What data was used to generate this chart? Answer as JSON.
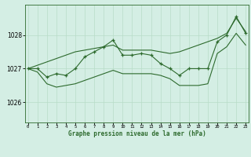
{
  "bg_color": "#d4eee4",
  "line_color": "#2d6a2d",
  "grid_color": "#b8dcc8",
  "xlabel": "Graphe pression niveau de la mer (hPa)",
  "x_ticks": [
    0,
    1,
    2,
    3,
    4,
    5,
    6,
    7,
    8,
    9,
    10,
    11,
    12,
    13,
    14,
    15,
    16,
    17,
    18,
    19,
    20,
    21,
    22,
    23
  ],
  "y_ticks": [
    1026,
    1027,
    1028
  ],
  "ylim": [
    1025.4,
    1028.9
  ],
  "xlim": [
    -0.3,
    23.3
  ],
  "main": [
    1027.0,
    1027.0,
    1026.75,
    1026.85,
    1026.8,
    1027.0,
    1027.35,
    1027.5,
    1027.65,
    1027.85,
    1027.4,
    1027.4,
    1027.45,
    1027.4,
    1027.15,
    1027.0,
    1026.8,
    1027.0,
    1027.0,
    1027.0,
    1027.8,
    1028.0,
    1028.55,
    1028.05
  ],
  "upper": [
    1027.0,
    1027.1,
    1027.2,
    1027.3,
    1027.4,
    1027.5,
    1027.55,
    1027.6,
    1027.65,
    1027.7,
    1027.55,
    1027.55,
    1027.55,
    1027.55,
    1027.5,
    1027.45,
    1027.5,
    1027.6,
    1027.7,
    1027.8,
    1027.9,
    1028.05,
    1028.5,
    1028.1
  ],
  "lower": [
    1027.0,
    1026.9,
    1026.55,
    1026.45,
    1026.5,
    1026.55,
    1026.65,
    1026.75,
    1026.85,
    1026.95,
    1026.85,
    1026.85,
    1026.85,
    1026.85,
    1026.8,
    1026.7,
    1026.5,
    1026.5,
    1026.5,
    1026.55,
    1027.45,
    1027.65,
    1028.05,
    1027.7
  ]
}
